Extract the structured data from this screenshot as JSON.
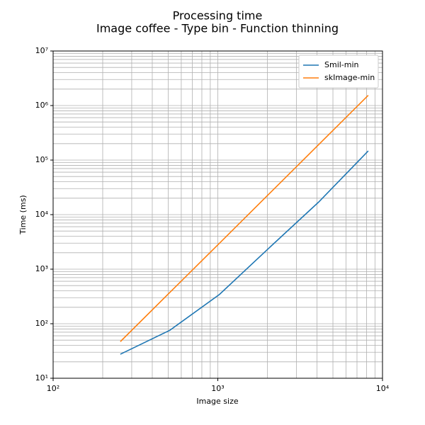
{
  "chart_data": {
    "type": "line",
    "title": "Processing time",
    "subtitle": "Image coffee - Type bin - Function thinning",
    "x_label": "Image size",
    "y_label": "Time (ms)",
    "x": [
      256,
      512,
      1024,
      2048,
      4096,
      8192
    ],
    "series": [
      {
        "name": "Smil-min",
        "color": "#1f77b4",
        "values": [
          27.6,
          76,
          345,
          2450,
          17000,
          147000
        ]
      },
      {
        "name": "skImage-min",
        "color": "#ff7f0e",
        "values": [
          47,
          376,
          3000,
          24000,
          192000,
          1540000
        ]
      }
    ],
    "xlim": [
      100,
      10000
    ],
    "xticks": [
      {
        "value": 100,
        "label": "10²"
      },
      {
        "value": 1000,
        "label": "10³"
      },
      {
        "value": 10000,
        "label": "10⁴"
      }
    ],
    "ylim": [
      10,
      10000000
    ],
    "yticks": [
      {
        "value": 10,
        "label": "10¹"
      },
      {
        "value": 100,
        "label": "10²"
      },
      {
        "value": 1000,
        "label": "10³"
      },
      {
        "value": 10000,
        "label": "10⁴"
      },
      {
        "value": 100000,
        "label": "10⁵"
      },
      {
        "value": 1000000,
        "label": "10⁶"
      },
      {
        "value": 10000000,
        "label": "10⁷"
      }
    ],
    "xscale": "log",
    "yscale": "log",
    "grid": true,
    "legend": "upper right"
  }
}
